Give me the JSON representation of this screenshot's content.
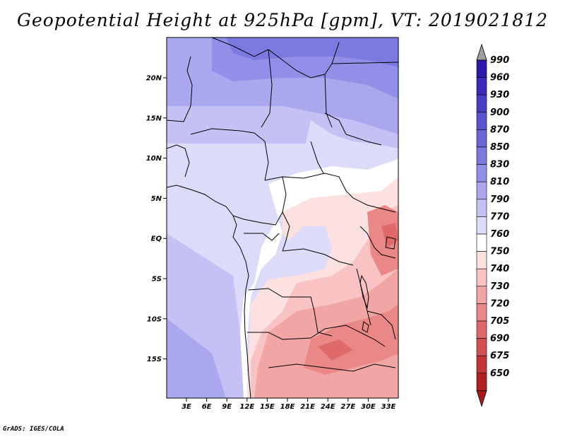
{
  "title": "Geopotential Height at 925hPa [gpm], VT: 2019021812",
  "credit": "GrADS: IGES/COLA",
  "map": {
    "lat_ticks": [
      "20N",
      "15N",
      "10N",
      "5N",
      "EQ",
      "5S",
      "10S",
      "15S"
    ],
    "lon_ticks": [
      "3E",
      "6E",
      "9E",
      "12E",
      "15E",
      "18E",
      "21E",
      "24E",
      "27E",
      "30E",
      "33E"
    ]
  },
  "colorbar": {
    "labels": [
      "990",
      "960",
      "930",
      "900",
      "870",
      "850",
      "830",
      "810",
      "790",
      "770",
      "760",
      "750",
      "740",
      "730",
      "720",
      "705",
      "690",
      "675",
      "650"
    ],
    "colors": [
      "#2b1aa8",
      "#3a2ab8",
      "#4a3ec6",
      "#5a52d0",
      "#6a66d8",
      "#7c79e0",
      "#928fe8",
      "#aaa7ef",
      "#c4c2f5",
      "#dcdcfa",
      "#ffffff",
      "#fde0e0",
      "#f9c3c3",
      "#f2a5a5",
      "#ea8787",
      "#e06a6a",
      "#d44f4f",
      "#c43535",
      "#b02020"
    ],
    "top_arrow_color": "#a0a0a0",
    "bottom_arrow_color": "#a81818"
  }
}
